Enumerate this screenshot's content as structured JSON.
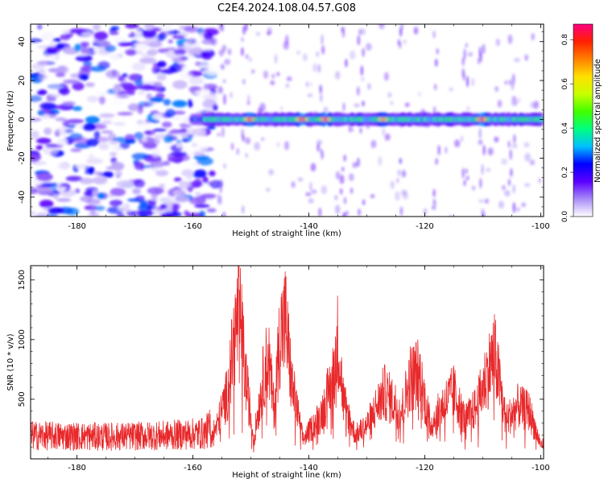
{
  "title": "C2E4.2024.108.04.57.G08",
  "colors": {
    "snr_line": "#e8282a",
    "spectro_background_low": "#e9ddff",
    "spectro_background_high": "#6a00f4"
  },
  "colorbar": {
    "label": "Normalized spectral amplitude",
    "ticks": [
      "0.0",
      "0.2",
      "0.4",
      "0.6",
      "0.8"
    ],
    "range": [
      0,
      0.87
    ],
    "colormap": [
      "#ffffff",
      "#a98cf7",
      "#5b00ff",
      "#0000ff",
      "#00c0ff",
      "#00ff80",
      "#40ff00",
      "#c8ff00",
      "#ffe000",
      "#ff8000",
      "#ff2000",
      "#ff0080"
    ]
  },
  "chart_data": [
    {
      "type": "heatmap",
      "xlabel": "Height of straight line (km)",
      "ylabel": "Frequency (Hz)",
      "xlim": [
        -188,
        -99.5
      ],
      "ylim": [
        -50,
        49
      ],
      "xticks": [
        "-180",
        "-160",
        "-140",
        "-120",
        "-100"
      ],
      "yticks": [
        "40",
        "20",
        "0",
        "-20",
        "-40"
      ],
      "noise_region_x": [
        -188,
        -158
      ],
      "signal_band": {
        "frequency": 0,
        "x_start": -160,
        "x_end": -100,
        "peaks": [
          {
            "x": -150,
            "amp": 0.82
          },
          {
            "x": -141,
            "amp": 0.85
          },
          {
            "x": -137,
            "amp": 0.84
          },
          {
            "x": -127,
            "amp": 0.76
          },
          {
            "x": -110,
            "amp": 0.85
          }
        ]
      }
    },
    {
      "type": "line",
      "xlabel": "Height of straight line (km)",
      "ylabel": "SNR (10 * v/v)",
      "xlim": [
        -188,
        -99.5
      ],
      "ylim": [
        0,
        1620
      ],
      "xticks": [
        "-180",
        "-160",
        "-140",
        "-120",
        "-100"
      ],
      "yticks": [
        "500",
        "1000",
        "1500"
      ],
      "series": [
        {
          "x": [
            -188,
            -175,
            -165,
            -158,
            -156,
            -154,
            -153,
            -152,
            -151,
            -149.5,
            -148,
            -147,
            -146,
            -145,
            -144,
            -143,
            -141,
            -138,
            -136,
            -135,
            -134,
            -132,
            -130,
            -127,
            -124,
            -122.5,
            -121,
            -119,
            -117,
            -115,
            -113,
            -111,
            -109.5,
            -108,
            -106,
            -104,
            -102,
            -100
          ],
          "y": [
            200,
            190,
            200,
            220,
            320,
            700,
            1200,
            1580,
            900,
            200,
            800,
            1100,
            500,
            1300,
            1450,
            800,
            200,
            450,
            800,
            1250,
            600,
            250,
            350,
            700,
            500,
            850,
            900,
            350,
            550,
            700,
            400,
            550,
            850,
            1100,
            400,
            550,
            500,
            150
          ]
        }
      ]
    }
  ]
}
